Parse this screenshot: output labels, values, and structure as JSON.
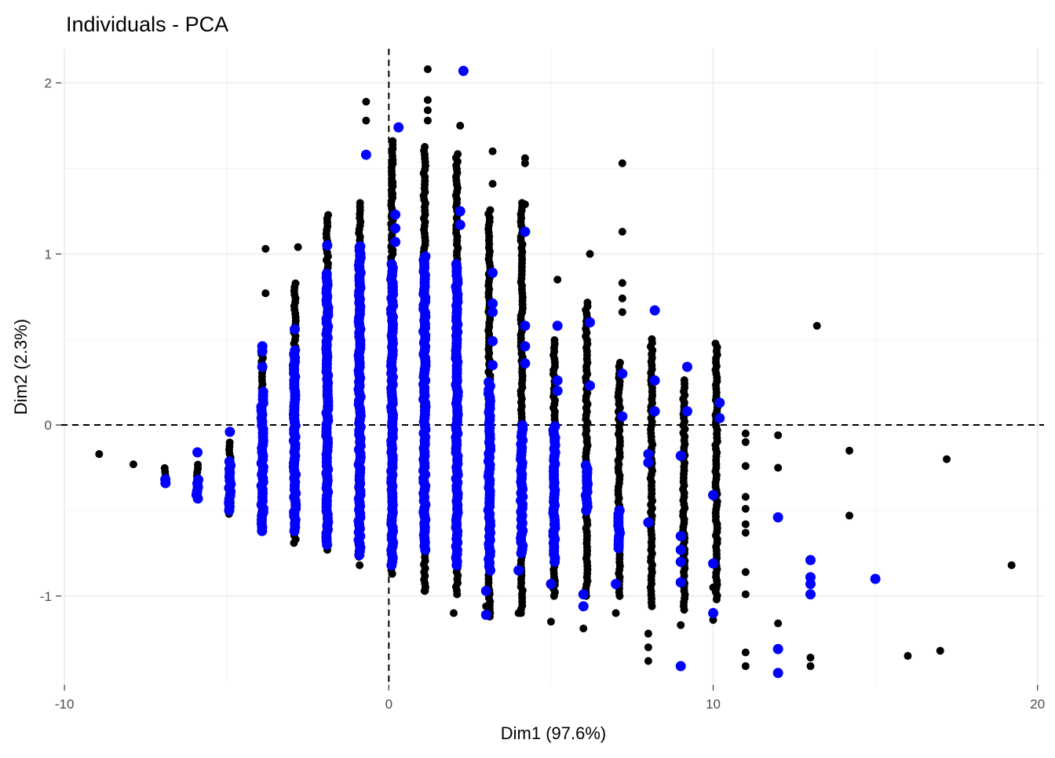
{
  "chart_data": {
    "type": "scatter",
    "title": "Individuals - PCA",
    "xlabel": "Dim1 (97.6%)",
    "ylabel": "Dim2 (2.3%)",
    "xlim": [
      -10.1,
      20.2
    ],
    "ylim": [
      -1.52,
      2.2
    ],
    "x_ticks": [
      -10,
      0,
      10,
      20
    ],
    "x_tick_labels": [
      "-10",
      "0",
      "10",
      "20"
    ],
    "y_ticks": [
      -1,
      0,
      1,
      2
    ],
    "y_tick_labels": [
      "-1",
      "0",
      "1",
      "2"
    ],
    "x_minor": [
      -5,
      5,
      15
    ],
    "y_minor": [
      -0.5,
      0.5,
      1.5
    ],
    "grid": true,
    "reference_lines": {
      "x": 0,
      "y": 0
    },
    "legend": "none",
    "colors": {
      "black": "#000000",
      "blue": "#0000ff"
    },
    "series": [
      {
        "color": "#000000",
        "columns": [
          {
            "x": -8.9,
            "ymin": -0.17,
            "ymax": -0.17
          },
          {
            "x": -7.9,
            "ymin": -0.23,
            "ymax": -0.23
          },
          {
            "x": -6.9,
            "ymin": -0.34,
            "ymax": -0.24
          },
          {
            "x": -5.9,
            "ymin": -0.43,
            "ymax": -0.22
          },
          {
            "x": -4.9,
            "ymin": -0.52,
            "ymax": -0.1
          },
          {
            "x": -3.9,
            "ymin": -0.62,
            "ymax": 0.47
          },
          {
            "x": -2.9,
            "ymin": -0.69,
            "ymax": 0.83
          },
          {
            "x": -1.9,
            "ymin": -0.73,
            "ymax": 1.23
          },
          {
            "x": -0.9,
            "ymin": -0.77,
            "ymax": 1.3
          },
          {
            "x": 0.1,
            "ymin": -0.87,
            "ymax": 1.68
          },
          {
            "x": 1.1,
            "ymin": -0.97,
            "ymax": 1.64
          },
          {
            "x": 2.1,
            "ymin": -0.99,
            "ymax": 1.6
          },
          {
            "x": 3.1,
            "ymin": -1.12,
            "ymax": 1.26
          },
          {
            "x": 4.1,
            "ymin": -1.1,
            "ymax": 1.3
          },
          {
            "x": 5.1,
            "ymin": -1.0,
            "ymax": 0.5
          },
          {
            "x": 6.1,
            "ymin": -1.0,
            "ymax": 0.72
          },
          {
            "x": 7.1,
            "ymin": -1.0,
            "ymax": 0.38
          },
          {
            "x": 8.1,
            "ymin": -1.06,
            "ymax": 0.52
          },
          {
            "x": 9.1,
            "ymin": -1.08,
            "ymax": 0.27
          },
          {
            "x": 10.1,
            "ymin": -1.02,
            "ymax": 0.48
          }
        ],
        "points": [
          {
            "x": -0.7,
            "y": 1.89
          },
          {
            "x": -0.7,
            "y": 1.78
          },
          {
            "x": 1.2,
            "y": 2.08
          },
          {
            "x": 1.2,
            "y": 1.9
          },
          {
            "x": 1.2,
            "y": 1.84
          },
          {
            "x": 1.2,
            "y": 1.78
          },
          {
            "x": 2.2,
            "y": 1.75
          },
          {
            "x": 3.2,
            "y": 1.6
          },
          {
            "x": 3.2,
            "y": 1.41
          },
          {
            "x": 4.2,
            "y": 1.56
          },
          {
            "x": 4.2,
            "y": 1.53
          },
          {
            "x": 4.2,
            "y": 1.29
          },
          {
            "x": 5.2,
            "y": 0.85
          },
          {
            "x": 6.2,
            "y": 1.0
          },
          {
            "x": 7.2,
            "y": 1.53
          },
          {
            "x": 7.2,
            "y": 1.13
          },
          {
            "x": 7.2,
            "y": 0.83
          },
          {
            "x": 7.2,
            "y": 0.74
          },
          {
            "x": 7.2,
            "y": 0.66
          },
          {
            "x": -3.8,
            "y": 1.03
          },
          {
            "x": -3.8,
            "y": 0.77
          },
          {
            "x": -2.8,
            "y": 1.04
          },
          {
            "x": -0.9,
            "y": -0.82
          },
          {
            "x": 0.1,
            "y": -0.87
          },
          {
            "x": 1.1,
            "y": -0.97
          },
          {
            "x": 2.0,
            "y": -1.1
          },
          {
            "x": 3.0,
            "y": -1.06
          },
          {
            "x": 4.0,
            "y": -1.1
          },
          {
            "x": 5.0,
            "y": -1.15
          },
          {
            "x": 6.0,
            "y": -1.19
          },
          {
            "x": 7.0,
            "y": -1.1
          },
          {
            "x": 8.0,
            "y": -1.22
          },
          {
            "x": 8.0,
            "y": -1.3
          },
          {
            "x": 8.0,
            "y": -1.38
          },
          {
            "x": 9.0,
            "y": -1.17
          },
          {
            "x": 10.0,
            "y": -1.14
          },
          {
            "x": 10.0,
            "y": -0.95
          },
          {
            "x": 11.0,
            "y": -0.05
          },
          {
            "x": 11.0,
            "y": -0.1
          },
          {
            "x": 11.0,
            "y": -0.24
          },
          {
            "x": 11.0,
            "y": -0.42
          },
          {
            "x": 11.0,
            "y": -0.49
          },
          {
            "x": 11.0,
            "y": -0.58
          },
          {
            "x": 11.0,
            "y": -0.63
          },
          {
            "x": 11.0,
            "y": -0.86
          },
          {
            "x": 11.0,
            "y": -0.99
          },
          {
            "x": 11.0,
            "y": -1.33
          },
          {
            "x": 11.0,
            "y": -1.41
          },
          {
            "x": 12.0,
            "y": -0.06
          },
          {
            "x": 12.0,
            "y": -0.25
          },
          {
            "x": 12.0,
            "y": -1.16
          },
          {
            "x": 13.0,
            "y": -1.36
          },
          {
            "x": 13.0,
            "y": -1.41
          },
          {
            "x": 13.2,
            "y": 0.58
          },
          {
            "x": 14.2,
            "y": -0.15
          },
          {
            "x": 14.2,
            "y": -0.53
          },
          {
            "x": 16.0,
            "y": -1.35
          },
          {
            "x": 17.0,
            "y": -1.32
          },
          {
            "x": 17.2,
            "y": -0.2
          },
          {
            "x": 19.2,
            "y": -0.82
          }
        ]
      },
      {
        "color": "#0000ff",
        "columns": [
          {
            "x": -6.9,
            "ymin": -0.34,
            "ymax": -0.3
          },
          {
            "x": -5.9,
            "ymin": -0.43,
            "ymax": -0.3
          },
          {
            "x": -4.9,
            "ymin": -0.5,
            "ymax": -0.2
          },
          {
            "x": -3.9,
            "ymin": -0.62,
            "ymax": 0.2
          },
          {
            "x": -2.9,
            "ymin": -0.62,
            "ymax": 0.45
          },
          {
            "x": -1.9,
            "ymin": -0.7,
            "ymax": 0.9
          },
          {
            "x": -0.9,
            "ymin": -0.76,
            "ymax": 1.05
          },
          {
            "x": 0.1,
            "ymin": -0.82,
            "ymax": 0.95
          },
          {
            "x": 1.1,
            "ymin": -0.73,
            "ymax": 1.0
          },
          {
            "x": 2.1,
            "ymin": -0.82,
            "ymax": 0.95
          },
          {
            "x": 3.1,
            "ymin": -0.85,
            "ymax": 0.25
          },
          {
            "x": 4.1,
            "ymin": -0.75,
            "ymax": 0.0
          },
          {
            "x": 5.1,
            "ymin": -0.8,
            "ymax": 0.0
          },
          {
            "x": 6.1,
            "ymin": -0.5,
            "ymax": -0.22
          },
          {
            "x": 7.1,
            "ymin": -0.72,
            "ymax": -0.5
          }
        ],
        "points": [
          {
            "x": 2.3,
            "y": 2.07
          },
          {
            "x": 0.3,
            "y": 1.74
          },
          {
            "x": -0.7,
            "y": 1.58
          },
          {
            "x": 0.2,
            "y": 1.23
          },
          {
            "x": 0.2,
            "y": 1.15
          },
          {
            "x": 0.2,
            "y": 1.07
          },
          {
            "x": 2.2,
            "y": 1.25
          },
          {
            "x": 2.2,
            "y": 1.17
          },
          {
            "x": 4.2,
            "y": 1.13
          },
          {
            "x": 3.2,
            "y": 0.89
          },
          {
            "x": 3.2,
            "y": 0.71
          },
          {
            "x": 3.2,
            "y": 0.66
          },
          {
            "x": 3.2,
            "y": 0.49
          },
          {
            "x": 3.2,
            "y": 0.35
          },
          {
            "x": 4.2,
            "y": 0.58
          },
          {
            "x": 4.2,
            "y": 0.46
          },
          {
            "x": 4.2,
            "y": 0.36
          },
          {
            "x": 5.2,
            "y": 0.58
          },
          {
            "x": 5.2,
            "y": 0.26
          },
          {
            "x": 5.2,
            "y": 0.2
          },
          {
            "x": 6.2,
            "y": 0.6
          },
          {
            "x": 6.2,
            "y": 0.23
          },
          {
            "x": 7.2,
            "y": 0.3
          },
          {
            "x": 7.2,
            "y": 0.05
          },
          {
            "x": 8.2,
            "y": 0.67
          },
          {
            "x": 8.2,
            "y": 0.26
          },
          {
            "x": 8.2,
            "y": 0.08
          },
          {
            "x": 9.2,
            "y": 0.34
          },
          {
            "x": 9.2,
            "y": 0.08
          },
          {
            "x": 10.2,
            "y": 0.13
          },
          {
            "x": 10.2,
            "y": 0.04
          },
          {
            "x": -5.9,
            "y": -0.16
          },
          {
            "x": -4.9,
            "y": -0.04
          },
          {
            "x": -3.9,
            "y": 0.46
          },
          {
            "x": -3.9,
            "y": 0.43
          },
          {
            "x": -3.9,
            "y": 0.34
          },
          {
            "x": -2.9,
            "y": 0.56
          },
          {
            "x": -1.9,
            "y": 1.05
          },
          {
            "x": -0.9,
            "y": 1.04
          },
          {
            "x": 3.0,
            "y": -1.11
          },
          {
            "x": 3.0,
            "y": -0.97
          },
          {
            "x": 4.0,
            "y": -0.85
          },
          {
            "x": 5.0,
            "y": -0.93
          },
          {
            "x": 6.0,
            "y": -0.99
          },
          {
            "x": 6.0,
            "y": -1.06
          },
          {
            "x": 7.0,
            "y": -0.93
          },
          {
            "x": 8.0,
            "y": -0.57
          },
          {
            "x": 8.0,
            "y": -0.22
          },
          {
            "x": 8.0,
            "y": -0.17
          },
          {
            "x": 9.0,
            "y": -0.18
          },
          {
            "x": 9.0,
            "y": -0.65
          },
          {
            "x": 9.0,
            "y": -0.73
          },
          {
            "x": 9.0,
            "y": -0.8
          },
          {
            "x": 9.0,
            "y": -0.92
          },
          {
            "x": 9.0,
            "y": -1.41
          },
          {
            "x": 10.0,
            "y": -0.41
          },
          {
            "x": 10.0,
            "y": -0.81
          },
          {
            "x": 10.0,
            "y": -1.1
          },
          {
            "x": 12.0,
            "y": -0.54
          },
          {
            "x": 12.0,
            "y": -1.31
          },
          {
            "x": 12.0,
            "y": -1.45
          },
          {
            "x": 13.0,
            "y": -0.79
          },
          {
            "x": 13.0,
            "y": -0.89
          },
          {
            "x": 13.0,
            "y": -0.93
          },
          {
            "x": 13.0,
            "y": -0.99
          },
          {
            "x": 15.0,
            "y": -0.9
          }
        ]
      }
    ]
  }
}
